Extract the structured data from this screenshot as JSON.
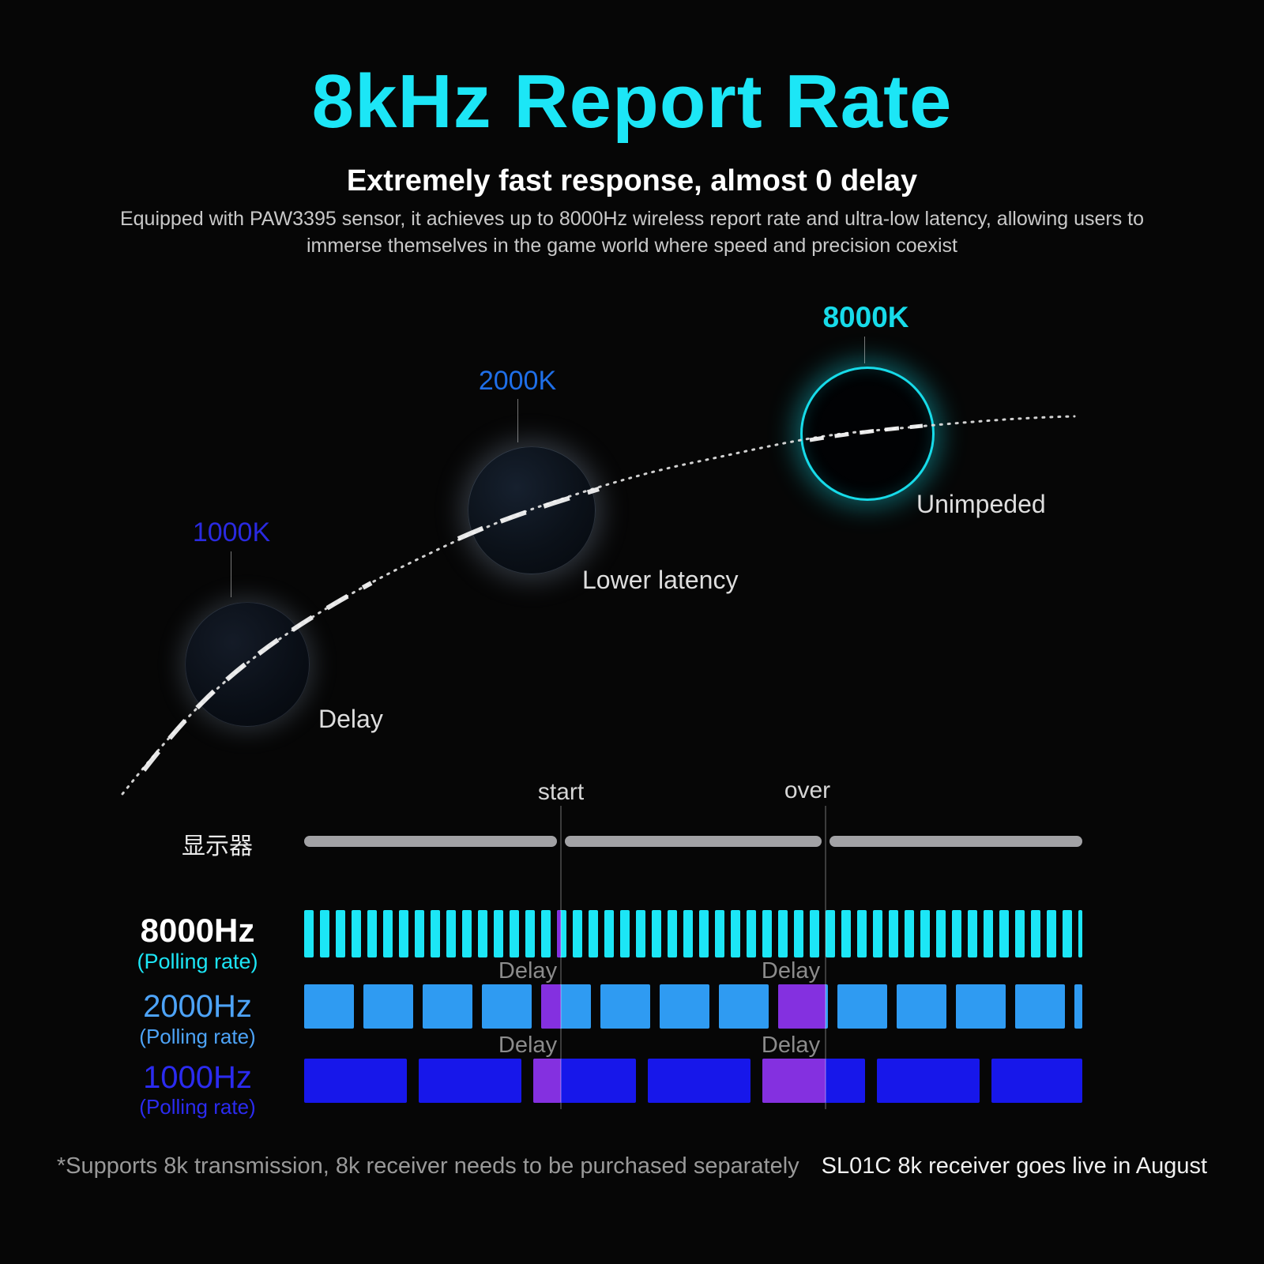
{
  "header": {
    "title": "8kHz Report Rate",
    "subtitle": "Extremely fast response, almost 0 delay",
    "description_line1": "Equipped with PAW3395 sensor, it achieves up to 8000Hz wireless report rate and ultra-low latency, allowing users to",
    "description_line2": "immerse themselves in the game world where speed and precision coexist"
  },
  "colors": {
    "accent_cyan": "#1ce6f6",
    "blue_2000": "#2f9bf2",
    "deep_blue_1000": "#1717ea",
    "label_1000k": "#2a2ae0",
    "label_2000k": "#1f6fe8",
    "label_8000k": "#17dbe9",
    "label_2000": "#4da3f7",
    "label_1000": "#2b2bf0",
    "monitor_gray": "#a2a2a5",
    "delay_purple": "#8430e0"
  },
  "curve": {
    "nodes": [
      {
        "label": "1000K",
        "caption": "Delay"
      },
      {
        "label": "2000K",
        "caption": "Lower latency"
      },
      {
        "label": "8000K",
        "caption": "Unimpeded"
      }
    ]
  },
  "timeline": {
    "markers": [
      "start",
      "over"
    ],
    "monitor_label": "显示器",
    "delay_label": "Delay",
    "rows": [
      {
        "label": "8000Hz",
        "sublabel": "(Polling rate)"
      },
      {
        "label": "2000Hz",
        "sublabel": "(Polling rate)"
      },
      {
        "label": "1000Hz",
        "sublabel": "(Polling rate)"
      }
    ]
  },
  "footer": {
    "note": "*Supports 8k transmission, 8k receiver needs to be purchased separately",
    "release": "SL01C 8k receiver goes live in August"
  }
}
